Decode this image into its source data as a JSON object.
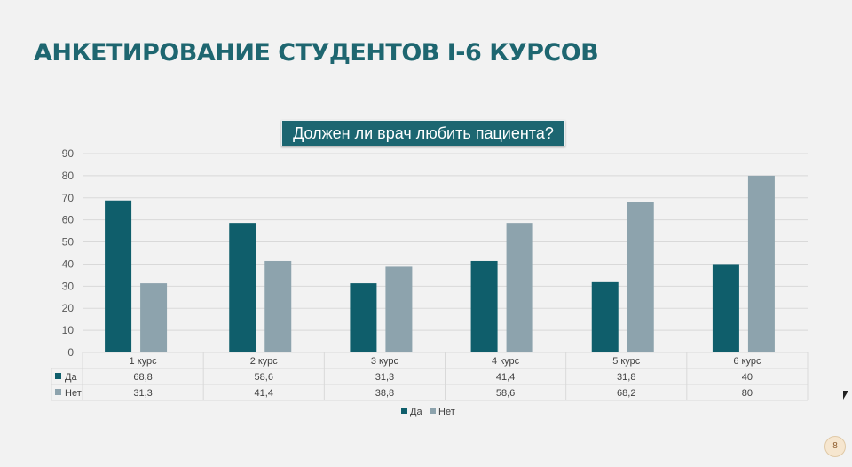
{
  "slide": {
    "title": "АНКЕТИРОВАНИЕ СТУДЕНТОВ I-6 КУРСОВ",
    "page_number": "8"
  },
  "chart_data": {
    "type": "bar",
    "title": "Должен ли врач любить пациента?",
    "categories": [
      "1 курс",
      "2 курс",
      "3 курс",
      "4 курс",
      "5 курс",
      "6 курс"
    ],
    "series": [
      {
        "name": "Да",
        "color": "#0f5e6b",
        "values": [
          68.8,
          58.6,
          31.3,
          41.4,
          31.8,
          40
        ]
      },
      {
        "name": "Нет",
        "color": "#8da3ad",
        "values": [
          31.3,
          41.4,
          38.8,
          58.6,
          68.2,
          80
        ]
      }
    ],
    "value_labels": {
      "Да": [
        "68,8",
        "58,6",
        "31,3",
        "41,4",
        "31,8",
        "40"
      ],
      "Нет": [
        "31,3",
        "41,4",
        "38,8",
        "58,6",
        "68,2",
        "80"
      ]
    },
    "yticks": [
      0,
      10,
      20,
      30,
      40,
      50,
      60,
      70,
      80,
      90
    ],
    "ylim": [
      0,
      90
    ],
    "grid": true,
    "legend": "bottom",
    "data_table": true
  }
}
